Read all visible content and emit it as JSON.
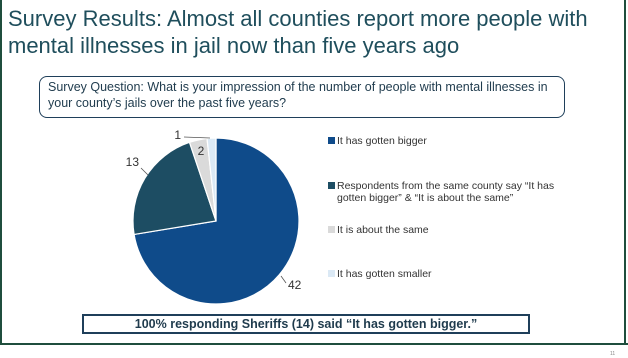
{
  "slide": {
    "title": "Survey Results: Almost all counties report more people with mental illnesses in jail now than five years ago",
    "question": "Survey Question: What is your impression of the number of people with mental illnesses in your county’s jails over the past five years?",
    "callout": "100% responding Sheriffs (14) said “It has gotten bigger.”",
    "page_number": "11"
  },
  "chart_data": {
    "type": "pie",
    "title": "",
    "legend_placement": "right",
    "slices": [
      {
        "label": "It has gotten bigger",
        "value": 42,
        "color": "#0f4b8a"
      },
      {
        "label": "Respondents from the same county say “It has gotten bigger” & “It is about the same”",
        "value": 13,
        "color": "#1d4d63"
      },
      {
        "label": "It is about the same",
        "value": 2,
        "color": "#dadada"
      },
      {
        "label": "It has gotten smaller",
        "value": 1,
        "color": "#dbe9f5"
      }
    ]
  }
}
